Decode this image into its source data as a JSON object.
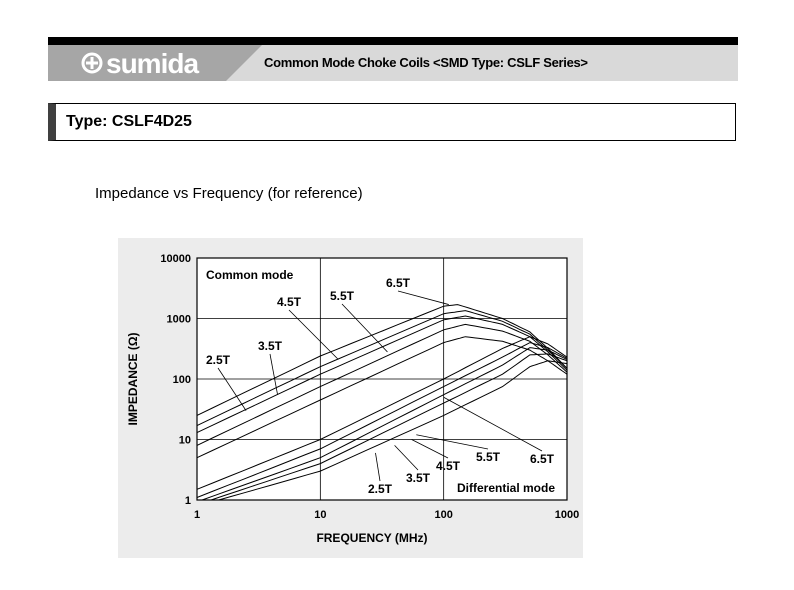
{
  "header": {
    "brand": "sumida",
    "title": "Common Mode Choke Coils <SMD Type: CSLF Series>"
  },
  "type_label": "Type: CSLF4D25",
  "chart_title": "Impedance vs Frequency (for reference)",
  "chart_data": {
    "type": "line",
    "xlabel": "FREQUENCY (MHz)",
    "ylabel": "IMPEDANCE (Ω)",
    "xscale": "log",
    "yscale": "log",
    "xlim": [
      1,
      1000
    ],
    "ylim": [
      1,
      10000
    ],
    "xticks": [
      "1",
      "10",
      "100",
      "1000"
    ],
    "yticks": [
      "1",
      "10",
      "100",
      "1000",
      "10000"
    ],
    "grid": true,
    "annotations": [
      "Common mode",
      "Differential mode"
    ],
    "groups": [
      {
        "name": "Common mode",
        "series": [
          {
            "name": "2.5T",
            "x": [
              1,
              10,
              100,
              150,
              300,
              500,
              700,
              1000
            ],
            "y": [
              5,
              45,
              400,
              500,
              420,
              300,
              200,
              120
            ]
          },
          {
            "name": "3.5T",
            "x": [
              1,
              10,
              100,
              150,
              300,
              500,
              700,
              1000
            ],
            "y": [
              8,
              75,
              650,
              800,
              620,
              420,
              250,
              130
            ]
          },
          {
            "name": "4.5T",
            "x": [
              1,
              10,
              100,
              150,
              300,
              500,
              700,
              1000
            ],
            "y": [
              13,
              120,
              950,
              1100,
              800,
              500,
              280,
              140
            ]
          },
          {
            "name": "5.5T",
            "x": [
              1,
              10,
              100,
              150,
              300,
              500,
              700,
              1000
            ],
            "y": [
              17,
              160,
              1200,
              1350,
              900,
              550,
              300,
              150
            ]
          },
          {
            "name": "6.5T",
            "x": [
              1,
              10,
              100,
              130,
              300,
              500,
              700,
              1000
            ],
            "y": [
              25,
              240,
              1600,
              1700,
              1000,
              600,
              320,
              150
            ]
          }
        ]
      },
      {
        "name": "Differential mode",
        "series": [
          {
            "name": "2.5T",
            "x": [
              1.5,
              10,
              100,
              300,
              500,
              700,
              1000
            ],
            "y": [
              1,
              3,
              25,
              75,
              160,
              200,
              180
            ]
          },
          {
            "name": "3.5T",
            "x": [
              1.3,
              10,
              100,
              300,
              500,
              700,
              1000
            ],
            "y": [
              1,
              4,
              40,
              120,
              250,
              260,
              200
            ]
          },
          {
            "name": "4.5T",
            "x": [
              1.1,
              10,
              100,
              300,
              500,
              700,
              1000
            ],
            "y": [
              1,
              5,
              55,
              170,
              330,
              300,
              210
            ]
          },
          {
            "name": "5.5T",
            "x": [
              1,
              10,
              100,
              300,
              500,
              700,
              1000
            ],
            "y": [
              1.1,
              7,
              75,
              230,
              400,
              330,
              220
            ]
          },
          {
            "name": "6.5T",
            "x": [
              1,
              10,
              100,
              300,
              500,
              700,
              1000
            ],
            "y": [
              1.5,
              10,
              100,
              320,
              500,
              380,
              230
            ]
          }
        ]
      }
    ],
    "labels": [
      {
        "text": "2.5T",
        "group": 0,
        "series": 0,
        "at": [
          2.5,
          30
        ]
      },
      {
        "text": "3.5T",
        "group": 0,
        "series": 1,
        "at": [
          4.5,
          55
        ]
      },
      {
        "text": "4.5T",
        "group": 0,
        "series": 2,
        "at": [
          14,
          210
        ]
      },
      {
        "text": "5.5T",
        "group": 0,
        "series": 3,
        "at": [
          35,
          280
        ]
      },
      {
        "text": "6.5T",
        "group": 0,
        "series": 4,
        "at": [
          110,
          1700
        ]
      },
      {
        "text": "2.5T",
        "group": 1,
        "series": 0,
        "at": [
          28,
          6
        ]
      },
      {
        "text": "3.5T",
        "group": 1,
        "series": 1,
        "at": [
          40,
          8
        ]
      },
      {
        "text": "4.5T",
        "group": 1,
        "series": 2,
        "at": [
          55,
          10
        ]
      },
      {
        "text": "5.5T",
        "group": 1,
        "series": 3,
        "at": [
          60,
          12
        ]
      },
      {
        "text": "6.5T",
        "group": 1,
        "series": 4,
        "at": [
          100,
          50
        ]
      }
    ]
  }
}
